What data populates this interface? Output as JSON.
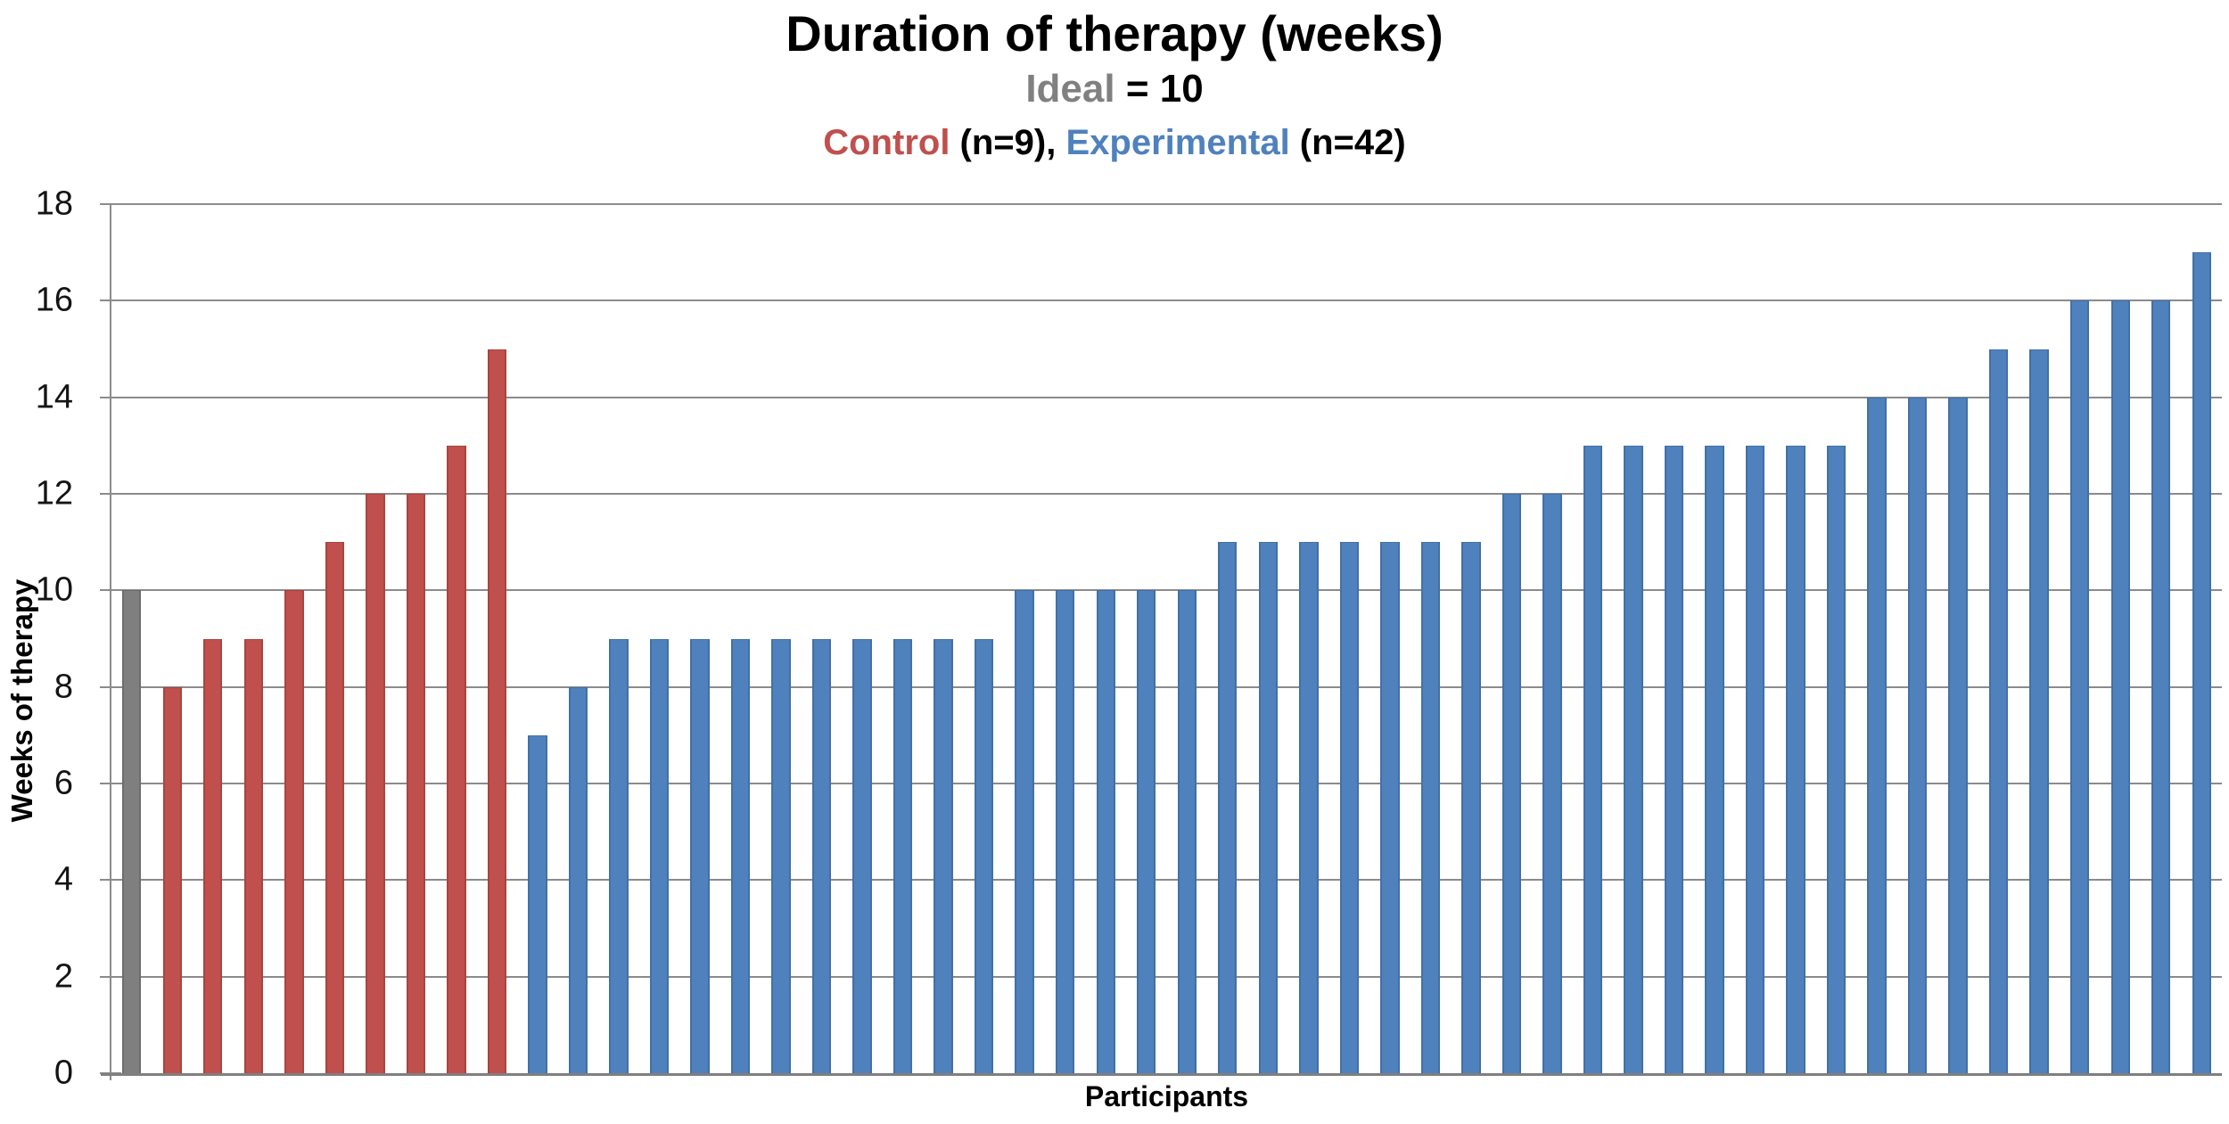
{
  "title": "Duration of therapy (weeks)",
  "subtitle": {
    "ideal_label": "Ideal",
    "ideal_rest": " = 10"
  },
  "legend_line": {
    "control_label": "Control",
    "control_rest": " (n=9), ",
    "experimental_label": "Experimental",
    "experimental_rest": " (n=42)"
  },
  "colors": {
    "control": "#c0504d",
    "experimental": "#4f81bd",
    "ideal": "#7f7f7f",
    "subtitle_gray": "#808080",
    "gridline": "#8b8b8b",
    "axis": "#7f7f7f",
    "text": "#000000"
  },
  "chart_data": {
    "type": "bar",
    "title": "Duration of therapy (weeks)",
    "subtitle": "Ideal = 10",
    "group_note": "Control (n=9), Experimental (n=42)",
    "xlabel": "Participants",
    "ylabel": "Weeks of therapy",
    "ylim": [
      0,
      18
    ],
    "yticks": [
      0,
      2,
      4,
      6,
      8,
      10,
      12,
      14,
      16,
      18
    ],
    "grid": true,
    "legend_position": "none",
    "bar_slot_fill": 0.47,
    "series": [
      {
        "name": "Ideal",
        "color": "#7f7f7f",
        "border": "#6d6d6d",
        "values": [
          10
        ]
      },
      {
        "name": "Control (n=9)",
        "color": "#c0504d",
        "border": "#a8453f",
        "values": [
          8,
          9,
          9,
          10,
          11,
          12,
          12,
          13,
          15
        ]
      },
      {
        "name": "Experimental (n=42)",
        "color": "#4f81bd",
        "border": "#4370a6",
        "values": [
          7,
          8,
          9,
          9,
          9,
          9,
          9,
          9,
          9,
          9,
          9,
          9,
          10,
          10,
          10,
          10,
          10,
          11,
          11,
          11,
          11,
          11,
          11,
          11,
          12,
          12,
          13,
          13,
          13,
          13,
          13,
          13,
          13,
          14,
          14,
          14,
          15,
          15,
          16,
          16,
          16,
          17
        ]
      }
    ]
  }
}
